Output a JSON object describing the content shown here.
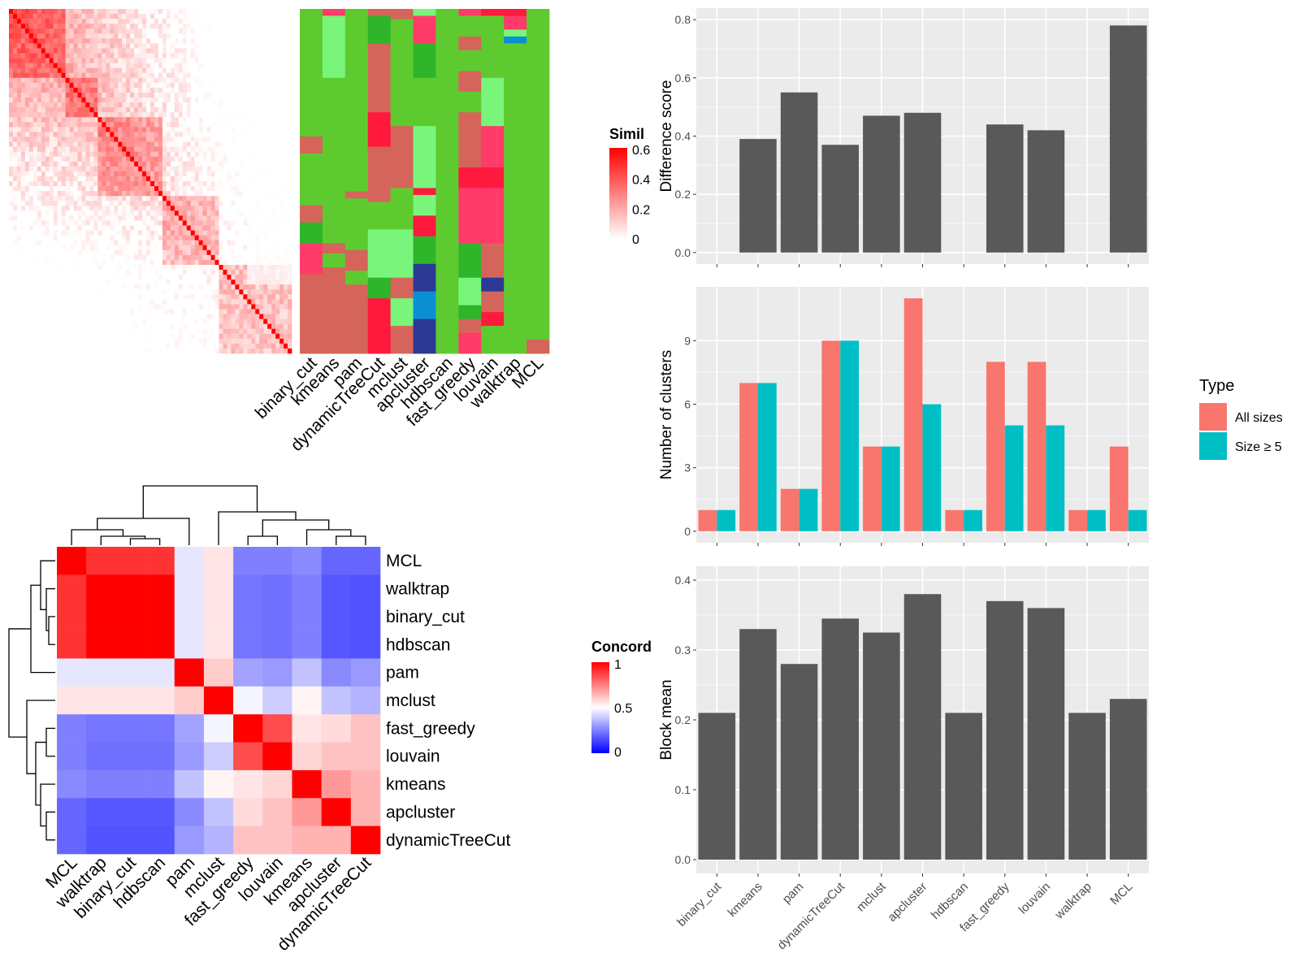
{
  "colors": {
    "similarity_high": "#ff0000",
    "similarity_low": "#ffffff",
    "concordance_high": "#ff0000",
    "concordance_mid": "#ffffff",
    "concordance_low": "#0000ff",
    "panel_background": "#ebebeb",
    "bar_fill": "#595959",
    "all_sizes": "#f8766d",
    "size_ge_5": "#00bfc4",
    "cluster_palette": [
      "#5dcb2f",
      "#79f57c",
      "#2eb52a",
      "#ff3b6a",
      "#d5655a",
      "#0b8fd4",
      "#ff1a3d",
      "#2c3a96"
    ]
  },
  "chart_data": [
    {
      "type": "heatmap",
      "id": "similarity",
      "legend_title": "Similarity",
      "legend_ticks": [
        "0",
        "0.2",
        "0.4",
        "0.6"
      ],
      "value_range": [
        0,
        0.6
      ],
      "n": 70,
      "cluster_columns": [
        "binary_cut",
        "kmeans",
        "pam",
        "dynamicTreeCut",
        "mclust",
        "apcluster",
        "hdbscan",
        "fast_greedy",
        "louvain",
        "walktrap",
        "MCL"
      ]
    },
    {
      "type": "heatmap",
      "id": "concordance",
      "legend_title": "Concordance",
      "legend_ticks": [
        "0",
        "0.5",
        "1"
      ],
      "value_range": [
        0,
        1
      ],
      "rows": [
        "MCL",
        "walktrap",
        "binary_cut",
        "hdbscan",
        "pam",
        "mclust",
        "fast_greedy",
        "louvain",
        "kmeans",
        "apcluster",
        "dynamicTreeCut"
      ],
      "columns": [
        "MCL",
        "walktrap",
        "binary_cut",
        "hdbscan",
        "pam",
        "mclust",
        "fast_greedy",
        "louvain",
        "kmeans",
        "apcluster",
        "dynamicTreeCut"
      ],
      "values": [
        [
          1.0,
          0.9,
          0.9,
          0.9,
          0.45,
          0.55,
          0.25,
          0.25,
          0.27,
          0.2,
          0.2
        ],
        [
          0.9,
          1.0,
          1.0,
          1.0,
          0.45,
          0.55,
          0.23,
          0.22,
          0.25,
          0.17,
          0.16
        ],
        [
          0.9,
          1.0,
          1.0,
          1.0,
          0.45,
          0.55,
          0.23,
          0.22,
          0.25,
          0.17,
          0.16
        ],
        [
          0.9,
          1.0,
          1.0,
          1.0,
          0.45,
          0.55,
          0.23,
          0.22,
          0.25,
          0.17,
          0.16
        ],
        [
          0.45,
          0.45,
          0.45,
          0.45,
          1.0,
          0.6,
          0.32,
          0.3,
          0.38,
          0.27,
          0.3
        ],
        [
          0.55,
          0.55,
          0.55,
          0.55,
          0.6,
          1.0,
          0.48,
          0.4,
          0.52,
          0.38,
          0.35
        ],
        [
          0.25,
          0.23,
          0.23,
          0.23,
          0.32,
          0.48,
          1.0,
          0.85,
          0.55,
          0.57,
          0.62
        ],
        [
          0.25,
          0.22,
          0.22,
          0.22,
          0.3,
          0.4,
          0.85,
          1.0,
          0.58,
          0.62,
          0.62
        ],
        [
          0.27,
          0.25,
          0.25,
          0.25,
          0.38,
          0.52,
          0.55,
          0.58,
          1.0,
          0.7,
          0.65
        ],
        [
          0.2,
          0.17,
          0.17,
          0.17,
          0.27,
          0.38,
          0.57,
          0.62,
          0.7,
          1.0,
          0.65
        ],
        [
          0.2,
          0.16,
          0.16,
          0.16,
          0.3,
          0.35,
          0.62,
          0.62,
          0.65,
          0.65,
          1.0
        ]
      ]
    },
    {
      "type": "bar",
      "id": "difference",
      "ylabel": "Difference score",
      "categories": [
        "binary_cut",
        "kmeans",
        "pam",
        "dynamicTreeCut",
        "mclust",
        "apcluster",
        "hdbscan",
        "fast_greedy",
        "louvain",
        "walktrap",
        "MCL"
      ],
      "values": [
        0,
        0.39,
        0.55,
        0.37,
        0.47,
        0.48,
        0,
        0.44,
        0.42,
        0,
        0.78
      ],
      "ylim": [
        0,
        0.8
      ],
      "yticks": [
        "0.0",
        "0.2",
        "0.4",
        "0.6",
        "0.8"
      ]
    },
    {
      "type": "bar",
      "id": "clusters",
      "ylabel": "Number of clusters",
      "categories": [
        "binary_cut",
        "kmeans",
        "pam",
        "dynamicTreeCut",
        "mclust",
        "apcluster",
        "hdbscan",
        "fast_greedy",
        "louvain",
        "walktrap",
        "MCL"
      ],
      "series": [
        {
          "name": "All sizes",
          "values": [
            1,
            7,
            2,
            9,
            4,
            11,
            1,
            8,
            8,
            1,
            4
          ]
        },
        {
          "name": "Size ≥ 5",
          "values": [
            1,
            7,
            2,
            9,
            4,
            6,
            1,
            5,
            5,
            1,
            1
          ]
        }
      ],
      "ylim": [
        0,
        11
      ],
      "yticks": [
        "0",
        "3",
        "6",
        "9"
      ],
      "legend_title": "Type",
      "legend_position": "right"
    },
    {
      "type": "bar",
      "id": "blockmean",
      "ylabel": "Block mean",
      "categories": [
        "binary_cut",
        "kmeans",
        "pam",
        "dynamicTreeCut",
        "mclust",
        "apcluster",
        "hdbscan",
        "fast_greedy",
        "louvain",
        "walktrap",
        "MCL"
      ],
      "values": [
        0.21,
        0.33,
        0.28,
        0.345,
        0.325,
        0.38,
        0.21,
        0.37,
        0.36,
        0.21,
        0.23
      ],
      "ylim": [
        0,
        0.4
      ],
      "yticks": [
        "0.0",
        "0.1",
        "0.2",
        "0.3",
        "0.4"
      ]
    }
  ]
}
